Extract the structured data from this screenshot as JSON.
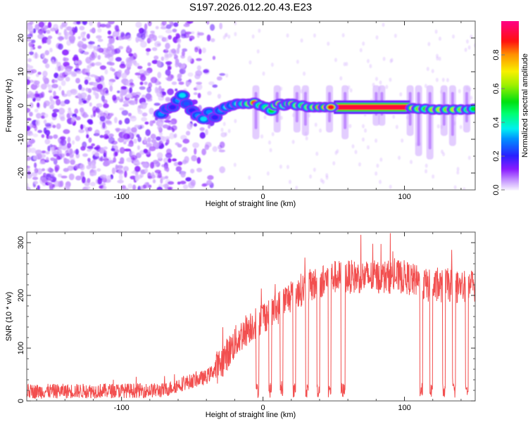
{
  "chart_data": [
    {
      "type": "heatmap",
      "title": "S197.2026.012.20.43.E23",
      "xlabel": "Height of straight line (km)",
      "ylabel": "Frequency (Hz)",
      "xlim": [
        -167,
        150
      ],
      "ylim": [
        -25,
        25
      ],
      "xticks": [
        -100,
        0,
        100
      ],
      "xtick_labels": [
        "-100",
        "0",
        "100"
      ],
      "yticks": [
        -20,
        -10,
        0,
        10,
        20
      ],
      "ytick_labels": [
        "-20",
        "-10",
        "0",
        "10",
        "20"
      ],
      "colorbar": {
        "label": "Normalized spectral amplitude",
        "range": [
          0,
          1
        ],
        "ticks": [
          0.0,
          0.2,
          0.4,
          0.6,
          0.8
        ],
        "tick_labels": [
          "0.0",
          "0.2",
          "0.4",
          "0.6",
          "0.8"
        ],
        "colormap": [
          [
            0.0,
            "#f4ecff"
          ],
          [
            0.05,
            "#c89cff"
          ],
          [
            0.12,
            "#8a1cff"
          ],
          [
            0.2,
            "#2a20ff"
          ],
          [
            0.3,
            "#0090ff"
          ],
          [
            0.36,
            "#00f0f0"
          ],
          [
            0.45,
            "#00ff70"
          ],
          [
            0.52,
            "#00e010"
          ],
          [
            0.62,
            "#a0f000"
          ],
          [
            0.7,
            "#f8f000"
          ],
          [
            0.8,
            "#ff9000"
          ],
          [
            0.88,
            "#ff1010"
          ],
          [
            1.0,
            "#ff0088"
          ]
        ]
      },
      "noise": {
        "dense_until_km": -65,
        "fade_until_km": -25,
        "typical_amplitude": 0.08
      },
      "track": [
        [
          -72,
          -2.5,
          0.3
        ],
        [
          -68,
          -1,
          0.25
        ],
        [
          -64,
          -0.5,
          0.2
        ],
        [
          -60,
          1.5,
          0.3
        ],
        [
          -57,
          3,
          0.35
        ],
        [
          -54,
          0.5,
          0.25
        ],
        [
          -50,
          -1.5,
          0.2
        ],
        [
          -46,
          -3,
          0.3
        ],
        [
          -42,
          -4,
          0.35
        ],
        [
          -38,
          -2,
          0.3
        ],
        [
          -34,
          -3.5,
          0.2
        ],
        [
          -30,
          -1.5,
          0.3
        ],
        [
          -26,
          -0.5,
          0.35
        ],
        [
          -22,
          0,
          0.3
        ],
        [
          -18,
          0.5,
          0.4
        ],
        [
          -14,
          0.5,
          0.45
        ],
        [
          -10,
          0.5,
          0.6
        ],
        [
          -6,
          0.8,
          0.85
        ],
        [
          -2,
          0,
          0.5
        ],
        [
          2,
          -0.5,
          0.45
        ],
        [
          6,
          -1.5,
          0.5
        ],
        [
          9,
          0,
          0.65
        ],
        [
          12,
          0.5,
          0.87
        ],
        [
          15,
          0,
          0.55
        ],
        [
          18,
          0.5,
          0.7
        ],
        [
          21,
          0.5,
          0.85
        ],
        [
          24,
          0,
          0.6
        ],
        [
          28,
          0,
          0.55
        ],
        [
          32,
          -0.5,
          0.6
        ],
        [
          36,
          -0.5,
          0.65
        ],
        [
          40,
          -0.5,
          0.8
        ],
        [
          44,
          -0.5,
          0.75
        ],
        [
          48,
          -0.5,
          0.9
        ],
        [
          106,
          -0.8,
          0.72
        ],
        [
          110,
          -1,
          0.6
        ],
        [
          115,
          -1,
          0.55
        ],
        [
          120,
          -1.2,
          0.62
        ],
        [
          125,
          -1.2,
          0.65
        ],
        [
          130,
          -1.2,
          0.6
        ],
        [
          135,
          -1.2,
          0.65
        ],
        [
          140,
          -1.2,
          0.6
        ],
        [
          145,
          -1.2,
          0.55
        ],
        [
          149,
          -1,
          0.5
        ]
      ],
      "band": {
        "x": [
          50,
          104
        ],
        "frequency": -0.5,
        "amplitude": 0.92
      },
      "streaks": [
        [
          -5,
          -7
        ],
        [
          10,
          -5
        ],
        [
          24,
          -5
        ],
        [
          30,
          -6
        ],
        [
          47,
          -5
        ],
        [
          58,
          -7
        ],
        [
          80,
          -3
        ],
        [
          84,
          -3
        ],
        [
          104,
          -6
        ],
        [
          110,
          -12
        ],
        [
          118,
          -13
        ],
        [
          128,
          -6
        ],
        [
          134,
          -9
        ],
        [
          144,
          -5
        ]
      ]
    },
    {
      "type": "line",
      "xlabel": "Height of straight line (km)",
      "ylabel": "SNR (10 * v/v)",
      "xlim": [
        -167,
        150
      ],
      "ylim": [
        0,
        320
      ],
      "xticks": [
        -100,
        0,
        100
      ],
      "xtick_labels": [
        "-100",
        "0",
        "100"
      ],
      "yticks": [
        0,
        100,
        200,
        300
      ],
      "ytick_labels": [
        "0",
        "100",
        "200",
        "300"
      ],
      "color": "#f03030",
      "trend": [
        [
          -167,
          18
        ],
        [
          -70,
          20
        ],
        [
          -60,
          30
        ],
        [
          -50,
          38
        ],
        [
          -40,
          45
        ],
        [
          -30,
          70
        ],
        [
          -20,
          110
        ],
        [
          -10,
          140
        ],
        [
          0,
          160
        ],
        [
          10,
          175
        ],
        [
          20,
          200
        ],
        [
          30,
          215
        ],
        [
          40,
          225
        ],
        [
          50,
          235
        ],
        [
          60,
          235
        ],
        [
          80,
          235
        ],
        [
          90,
          235
        ],
        [
          100,
          235
        ],
        [
          110,
          225
        ],
        [
          120,
          215
        ],
        [
          130,
          220
        ],
        [
          140,
          215
        ],
        [
          150,
          220
        ]
      ],
      "noise_amplitude": {
        "low": 14,
        "high": 32
      },
      "dropouts": [
        [
          -5,
          -3
        ],
        [
          4,
          6
        ],
        [
          12,
          14
        ],
        [
          21,
          23
        ],
        [
          30,
          32
        ],
        [
          38,
          40
        ],
        [
          46,
          48
        ],
        [
          55,
          58
        ],
        [
          111,
          113
        ],
        [
          118,
          120
        ],
        [
          127,
          129
        ],
        [
          134,
          136
        ],
        [
          143,
          145
        ]
      ],
      "dropout_level": 20,
      "peak": [
        90,
        318
      ]
    }
  ]
}
